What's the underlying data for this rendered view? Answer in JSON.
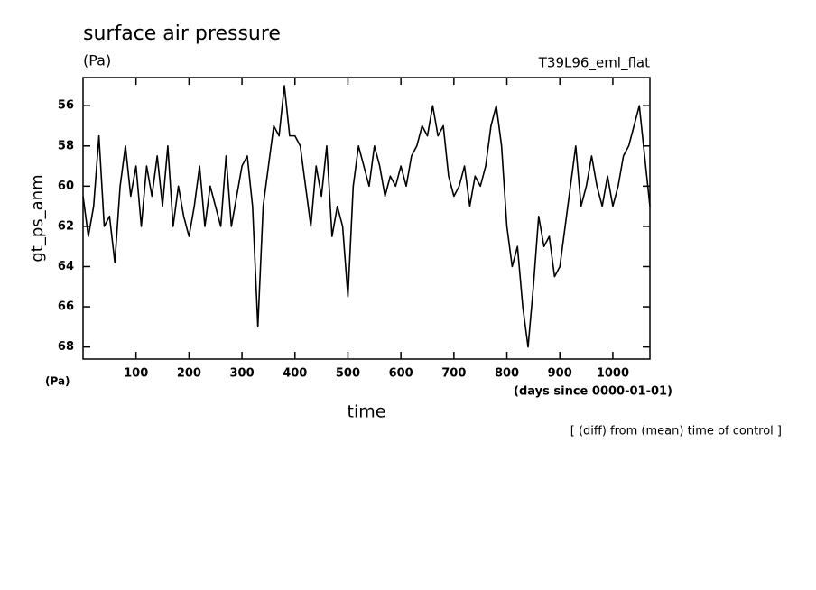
{
  "chart_data": {
    "type": "line",
    "title": "surface air pressure",
    "subtitle": "(Pa)",
    "annotation_right": "T39L96_eml_flat",
    "y_label": "gt_ps_anm",
    "x_label": "time",
    "unit_label": "(Pa)",
    "x_unit_label": "(days since 0000-01-01)",
    "footnote": "[ (diff) from (mean) time of control ]",
    "x": [
      0,
      10,
      20,
      30,
      40,
      50,
      60,
      70,
      80,
      90,
      100,
      110,
      120,
      130,
      140,
      150,
      160,
      170,
      180,
      190,
      200,
      210,
      220,
      230,
      240,
      250,
      260,
      270,
      280,
      290,
      300,
      310,
      320,
      330,
      340,
      350,
      360,
      370,
      380,
      390,
      400,
      410,
      420,
      430,
      440,
      450,
      460,
      470,
      480,
      490,
      500,
      510,
      520,
      530,
      540,
      550,
      560,
      570,
      580,
      590,
      600,
      610,
      620,
      630,
      640,
      650,
      660,
      670,
      680,
      690,
      700,
      710,
      720,
      730,
      740,
      750,
      760,
      770,
      780,
      790,
      800,
      810,
      820,
      830,
      840,
      850,
      860,
      870,
      880,
      890,
      900,
      910,
      920,
      930,
      940,
      950,
      960,
      970,
      980,
      990,
      1000,
      1010,
      1020,
      1030,
      1040,
      1050,
      1060,
      1070
    ],
    "series": [
      {
        "name": "gt_ps_anm",
        "color": "#000000",
        "values": [
          60.5,
          62.5,
          61,
          57.5,
          62,
          61.5,
          63.8,
          60,
          58,
          60.5,
          59,
          62,
          59,
          60.5,
          58.5,
          61,
          58,
          62,
          60,
          61.5,
          62.5,
          61,
          59,
          62,
          60,
          61,
          62,
          58.5,
          62,
          60.5,
          59,
          58.5,
          61,
          67,
          61,
          59,
          57,
          57.5,
          55,
          57.5,
          57.5,
          58,
          60,
          62,
          59,
          60.5,
          58,
          62.5,
          61,
          62,
          65.5,
          60,
          58,
          59,
          60,
          58,
          59,
          60.5,
          59.5,
          60,
          59,
          60,
          58.5,
          58,
          57,
          57.5,
          56,
          57.5,
          57,
          59.5,
          60.5,
          60,
          59,
          61,
          59.5,
          60,
          59,
          57,
          56,
          58,
          62,
          64,
          63,
          66,
          68,
          65,
          61.5,
          63,
          62.5,
          64.5,
          64,
          62,
          60,
          58,
          61,
          60,
          58.5,
          60,
          61,
          59.5,
          61,
          60,
          58.5,
          58,
          57,
          56,
          58.5,
          61
        ]
      }
    ],
    "xlim": [
      0,
      1070
    ],
    "ylim": [
      68.6,
      54.6
    ],
    "xticks": [
      100,
      200,
      300,
      400,
      500,
      600,
      700,
      800,
      900,
      1000
    ],
    "yticks": [
      56,
      58,
      60,
      62,
      64,
      66,
      68
    ]
  }
}
